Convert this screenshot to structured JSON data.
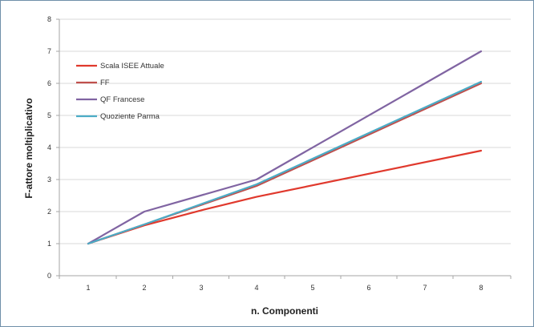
{
  "chart_data": {
    "type": "line",
    "title": "",
    "xlabel": "n. Componenti",
    "ylabel": "F-attore moltiplicativo",
    "x": [
      1,
      2,
      3,
      4,
      5,
      6,
      7,
      8
    ],
    "x_ticks": [
      "1",
      "2",
      "3",
      "4",
      "5",
      "6",
      "7",
      "8"
    ],
    "y_ticks": [
      "0",
      "1",
      "2",
      "3",
      "4",
      "5",
      "6",
      "7",
      "8"
    ],
    "ylim": [
      0,
      8
    ],
    "grid": true,
    "legend_position": "top-left",
    "series": [
      {
        "name": "Scala ISEE Attuale",
        "color": "#e0392d",
        "points": [
          [
            1,
            1.0
          ],
          [
            2,
            1.57
          ],
          [
            3,
            2.04
          ],
          [
            4,
            2.46
          ],
          [
            8,
            3.9
          ]
        ]
      },
      {
        "name": "FF",
        "color": "#c0504d",
        "points": [
          [
            1,
            1.0
          ],
          [
            2,
            1.6
          ],
          [
            4,
            2.8
          ],
          [
            8,
            6.0
          ]
        ]
      },
      {
        "name": "QF Francese",
        "color": "#8064a2",
        "points": [
          [
            1,
            1.0
          ],
          [
            2,
            2.0
          ],
          [
            4,
            3.0
          ],
          [
            8,
            7.0
          ]
        ]
      },
      {
        "name": "Quoziente Parma",
        "color": "#4bacc6",
        "points": [
          [
            1,
            1.0
          ],
          [
            2,
            1.6
          ],
          [
            4,
            2.85
          ],
          [
            8,
            6.05
          ]
        ]
      }
    ]
  }
}
